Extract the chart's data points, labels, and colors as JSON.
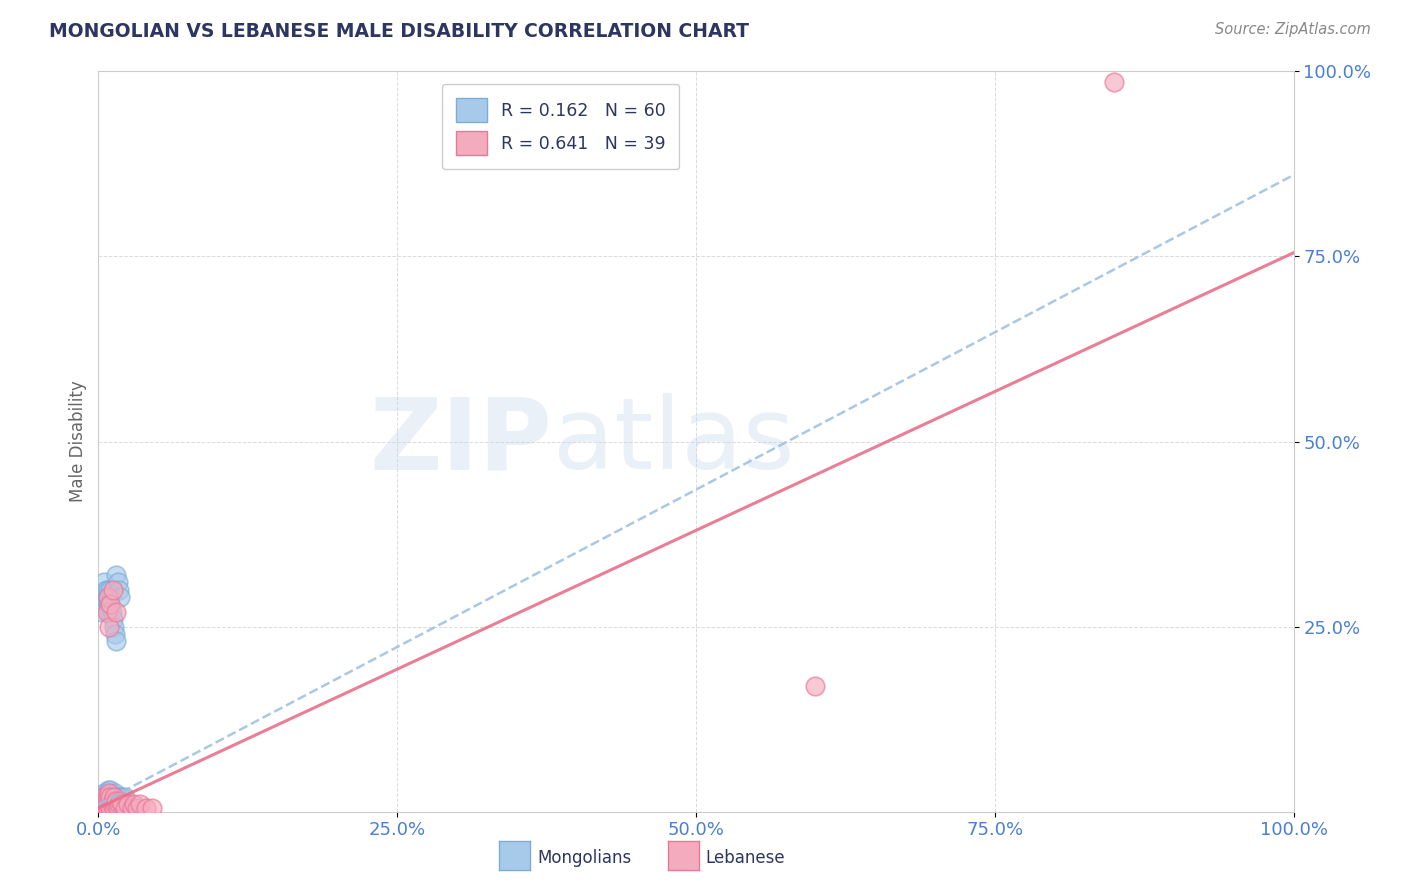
{
  "title": "MONGOLIAN VS LEBANESE MALE DISABILITY CORRELATION CHART",
  "source": "Source: ZipAtlas.com",
  "ylabel": "Male Disability",
  "xlim": [
    0,
    1
  ],
  "ylim": [
    0,
    1
  ],
  "xticks": [
    0,
    0.25,
    0.5,
    0.75,
    1.0
  ],
  "yticks": [
    0.25,
    0.5,
    0.75,
    1.0
  ],
  "xticklabels": [
    "0.0%",
    "25.0%",
    "50.0%",
    "75.0%",
    "100.0%"
  ],
  "yticklabels": [
    "25.0%",
    "50.0%",
    "75.0%",
    "100.0%"
  ],
  "mongolian_color": "#A8CAEA",
  "mongolian_edge": "#7BADD6",
  "lebanese_color": "#F5ABBE",
  "lebanese_edge": "#E87898",
  "mongolian_R": 0.162,
  "mongolian_N": 60,
  "lebanese_R": 0.641,
  "lebanese_N": 39,
  "legend_label_mongolian": "Mongolians",
  "legend_label_lebanese": "Lebanese",
  "watermark_zip": "ZIP",
  "watermark_atlas": "atlas",
  "title_color": "#2d3561",
  "source_color": "#888888",
  "axis_label_color": "#4a7fd4",
  "tick_color": "#4a7fd4",
  "ylabel_color": "#666666",
  "mongo_line_color": "#9BBFE0",
  "leb_line_color": "#E8708A",
  "mongo_trend_x": [
    0,
    1.0
  ],
  "mongo_trend_y": [
    0.01,
    0.86
  ],
  "leb_trend_x": [
    0,
    1.0
  ],
  "leb_trend_y": [
    0.005,
    0.755
  ],
  "mongolian_points": [
    [
      0.003,
      0.01
    ],
    [
      0.004,
      0.02
    ],
    [
      0.005,
      0.005
    ],
    [
      0.005,
      0.015
    ],
    [
      0.005,
      0.025
    ],
    [
      0.006,
      0.01
    ],
    [
      0.006,
      0.02
    ],
    [
      0.007,
      0.005
    ],
    [
      0.007,
      0.015
    ],
    [
      0.008,
      0.01
    ],
    [
      0.008,
      0.02
    ],
    [
      0.008,
      0.03
    ],
    [
      0.009,
      0.005
    ],
    [
      0.009,
      0.015
    ],
    [
      0.009,
      0.025
    ],
    [
      0.01,
      0.01
    ],
    [
      0.01,
      0.02
    ],
    [
      0.01,
      0.03
    ],
    [
      0.011,
      0.005
    ],
    [
      0.011,
      0.015
    ],
    [
      0.012,
      0.01
    ],
    [
      0.012,
      0.02
    ],
    [
      0.013,
      0.005
    ],
    [
      0.013,
      0.015
    ],
    [
      0.014,
      0.01
    ],
    [
      0.014,
      0.025
    ],
    [
      0.015,
      0.005
    ],
    [
      0.015,
      0.015
    ],
    [
      0.016,
      0.01
    ],
    [
      0.016,
      0.02
    ],
    [
      0.017,
      0.005
    ],
    [
      0.018,
      0.01
    ],
    [
      0.018,
      0.02
    ],
    [
      0.019,
      0.005
    ],
    [
      0.019,
      0.015
    ],
    [
      0.02,
      0.01
    ],
    [
      0.02,
      0.02
    ],
    [
      0.021,
      0.005
    ],
    [
      0.022,
      0.01
    ],
    [
      0.022,
      0.02
    ],
    [
      0.003,
      0.27
    ],
    [
      0.004,
      0.28
    ],
    [
      0.005,
      0.29
    ],
    [
      0.005,
      0.31
    ],
    [
      0.006,
      0.3
    ],
    [
      0.007,
      0.29
    ],
    [
      0.008,
      0.28
    ],
    [
      0.008,
      0.3
    ],
    [
      0.009,
      0.27
    ],
    [
      0.01,
      0.28
    ],
    [
      0.01,
      0.3
    ],
    [
      0.011,
      0.27
    ],
    [
      0.012,
      0.26
    ],
    [
      0.013,
      0.25
    ],
    [
      0.014,
      0.24
    ],
    [
      0.015,
      0.23
    ],
    [
      0.015,
      0.32
    ],
    [
      0.016,
      0.31
    ],
    [
      0.017,
      0.3
    ],
    [
      0.018,
      0.29
    ]
  ],
  "lebanese_points": [
    [
      0.004,
      0.005
    ],
    [
      0.005,
      0.01
    ],
    [
      0.005,
      0.02
    ],
    [
      0.006,
      0.005
    ],
    [
      0.006,
      0.015
    ],
    [
      0.007,
      0.01
    ],
    [
      0.007,
      0.02
    ],
    [
      0.008,
      0.005
    ],
    [
      0.008,
      0.015
    ],
    [
      0.009,
      0.01
    ],
    [
      0.009,
      0.025
    ],
    [
      0.01,
      0.005
    ],
    [
      0.01,
      0.02
    ],
    [
      0.011,
      0.01
    ],
    [
      0.012,
      0.015
    ],
    [
      0.013,
      0.005
    ],
    [
      0.013,
      0.02
    ],
    [
      0.014,
      0.01
    ],
    [
      0.015,
      0.015
    ],
    [
      0.016,
      0.005
    ],
    [
      0.017,
      0.01
    ],
    [
      0.018,
      0.015
    ],
    [
      0.02,
      0.01
    ],
    [
      0.022,
      0.005
    ],
    [
      0.025,
      0.01
    ],
    [
      0.028,
      0.005
    ],
    [
      0.03,
      0.01
    ],
    [
      0.032,
      0.005
    ],
    [
      0.035,
      0.01
    ],
    [
      0.04,
      0.005
    ],
    [
      0.045,
      0.005
    ],
    [
      0.007,
      0.27
    ],
    [
      0.008,
      0.29
    ],
    [
      0.009,
      0.25
    ],
    [
      0.01,
      0.28
    ],
    [
      0.012,
      0.3
    ],
    [
      0.015,
      0.27
    ],
    [
      0.6,
      0.17
    ],
    [
      0.85,
      0.985
    ]
  ]
}
